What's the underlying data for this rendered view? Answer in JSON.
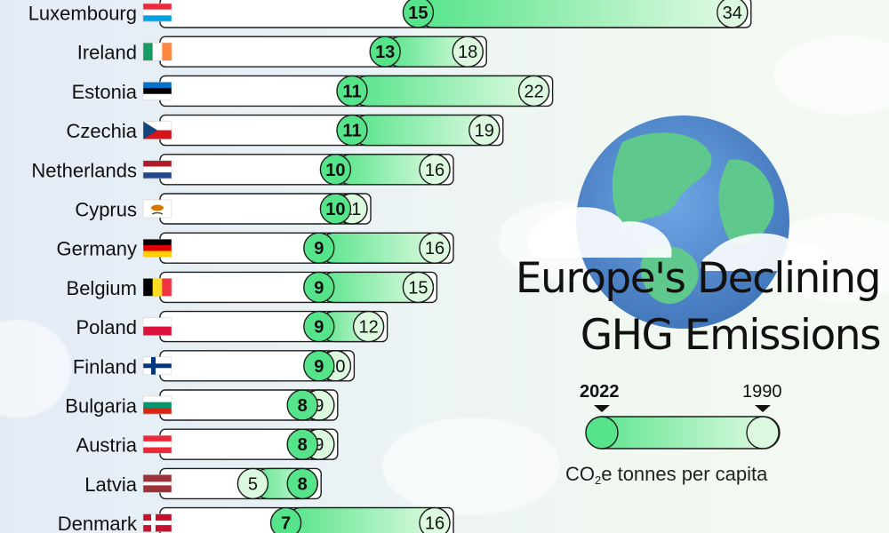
{
  "chart_data": {
    "type": "bar",
    "title": "Europe's Declining GHG Emissions",
    "legend": {
      "label_2022": "2022",
      "label_1990": "1990",
      "unit_prefix": "CO",
      "unit_sub": "2",
      "unit_suffix": "e tonnes per capita"
    },
    "series": [
      {
        "name": "2022",
        "values": [
          15,
          13,
          11,
          11,
          10,
          10,
          9,
          9,
          9,
          9,
          8,
          8,
          8,
          7
        ]
      },
      {
        "name": "1990",
        "values": [
          34,
          18,
          22,
          19,
          16,
          11,
          16,
          15,
          12,
          10,
          9,
          9,
          5,
          16
        ]
      }
    ],
    "categories": [
      "Luxembourg",
      "Ireland",
      "Estonia",
      "Czechia",
      "Netherlands",
      "Cyprus",
      "Germany",
      "Belgium",
      "Poland",
      "Finland",
      "Bulgaria",
      "Austria",
      "Latvia",
      "Denmark"
    ],
    "xlim": [
      0,
      34
    ]
  },
  "colors": {
    "accent_green": "#56e48a",
    "light_green": "#dcf8de",
    "outline": "#1d1d1d",
    "globe_blue": "#4f87c8"
  },
  "flags": [
    {
      "country": "Luxembourg",
      "type": "h3",
      "colors": [
        "#ed2939",
        "#ffffff",
        "#00a1de"
      ]
    },
    {
      "country": "Ireland",
      "type": "v3",
      "colors": [
        "#169b62",
        "#ffffff",
        "#ff883e"
      ]
    },
    {
      "country": "Estonia",
      "type": "h3",
      "colors": [
        "#0072ce",
        "#000000",
        "#ffffff"
      ]
    },
    {
      "country": "Czechia",
      "type": "czech",
      "colors": [
        "#ffffff",
        "#d7141a",
        "#11457e"
      ]
    },
    {
      "country": "Netherlands",
      "type": "h3",
      "colors": [
        "#ae1c28",
        "#ffffff",
        "#21468b"
      ]
    },
    {
      "country": "Cyprus",
      "type": "cyprus",
      "colors": [
        "#ffffff",
        "#d57800",
        "#4e5b31"
      ]
    },
    {
      "country": "Germany",
      "type": "h3",
      "colors": [
        "#000000",
        "#dd0000",
        "#ffce00"
      ]
    },
    {
      "country": "Belgium",
      "type": "v3",
      "colors": [
        "#000000",
        "#fdda24",
        "#ef3340"
      ]
    },
    {
      "country": "Poland",
      "type": "h2",
      "colors": [
        "#ffffff",
        "#dc143c"
      ]
    },
    {
      "country": "Finland",
      "type": "nordic",
      "colors": [
        "#ffffff",
        "#003580"
      ]
    },
    {
      "country": "Bulgaria",
      "type": "h3",
      "colors": [
        "#ffffff",
        "#00966e",
        "#d62612"
      ]
    },
    {
      "country": "Austria",
      "type": "h3",
      "colors": [
        "#ed2939",
        "#ffffff",
        "#ed2939"
      ]
    },
    {
      "country": "Latvia",
      "type": "latvia",
      "colors": [
        "#9e3039",
        "#ffffff"
      ]
    },
    {
      "country": "Denmark",
      "type": "nordic",
      "colors": [
        "#c8102e",
        "#ffffff"
      ]
    }
  ]
}
